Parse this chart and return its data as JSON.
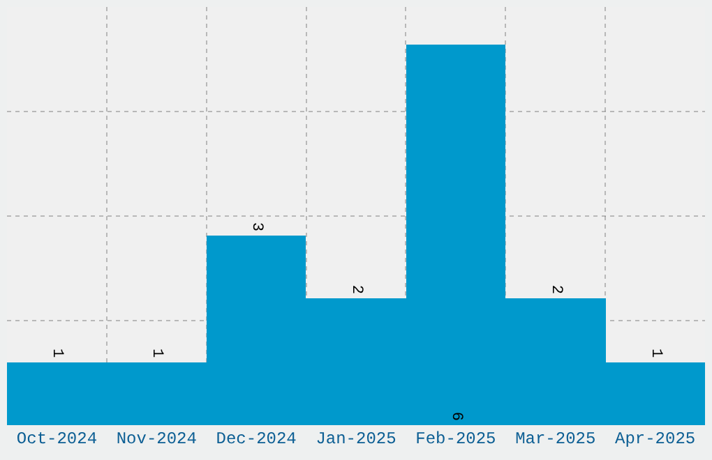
{
  "chart_data": {
    "type": "bar",
    "categories": [
      "Oct-2024",
      "Nov-2024",
      "Dec-2024",
      "Jan-2025",
      "Feb-2025",
      "Mar-2025",
      "Apr-2025"
    ],
    "values": [
      1,
      1,
      3,
      2,
      6,
      2,
      1
    ],
    "color": "#0099cc",
    "ylim": [
      0,
      6.6
    ],
    "yticks": [
      {
        "value": 1.65,
        "label": null
      },
      {
        "value": 3.3,
        "label": null
      },
      {
        "value": 4.95,
        "label": null
      }
    ],
    "grid": true,
    "tick_labels": "x",
    "data_labels": true
  }
}
